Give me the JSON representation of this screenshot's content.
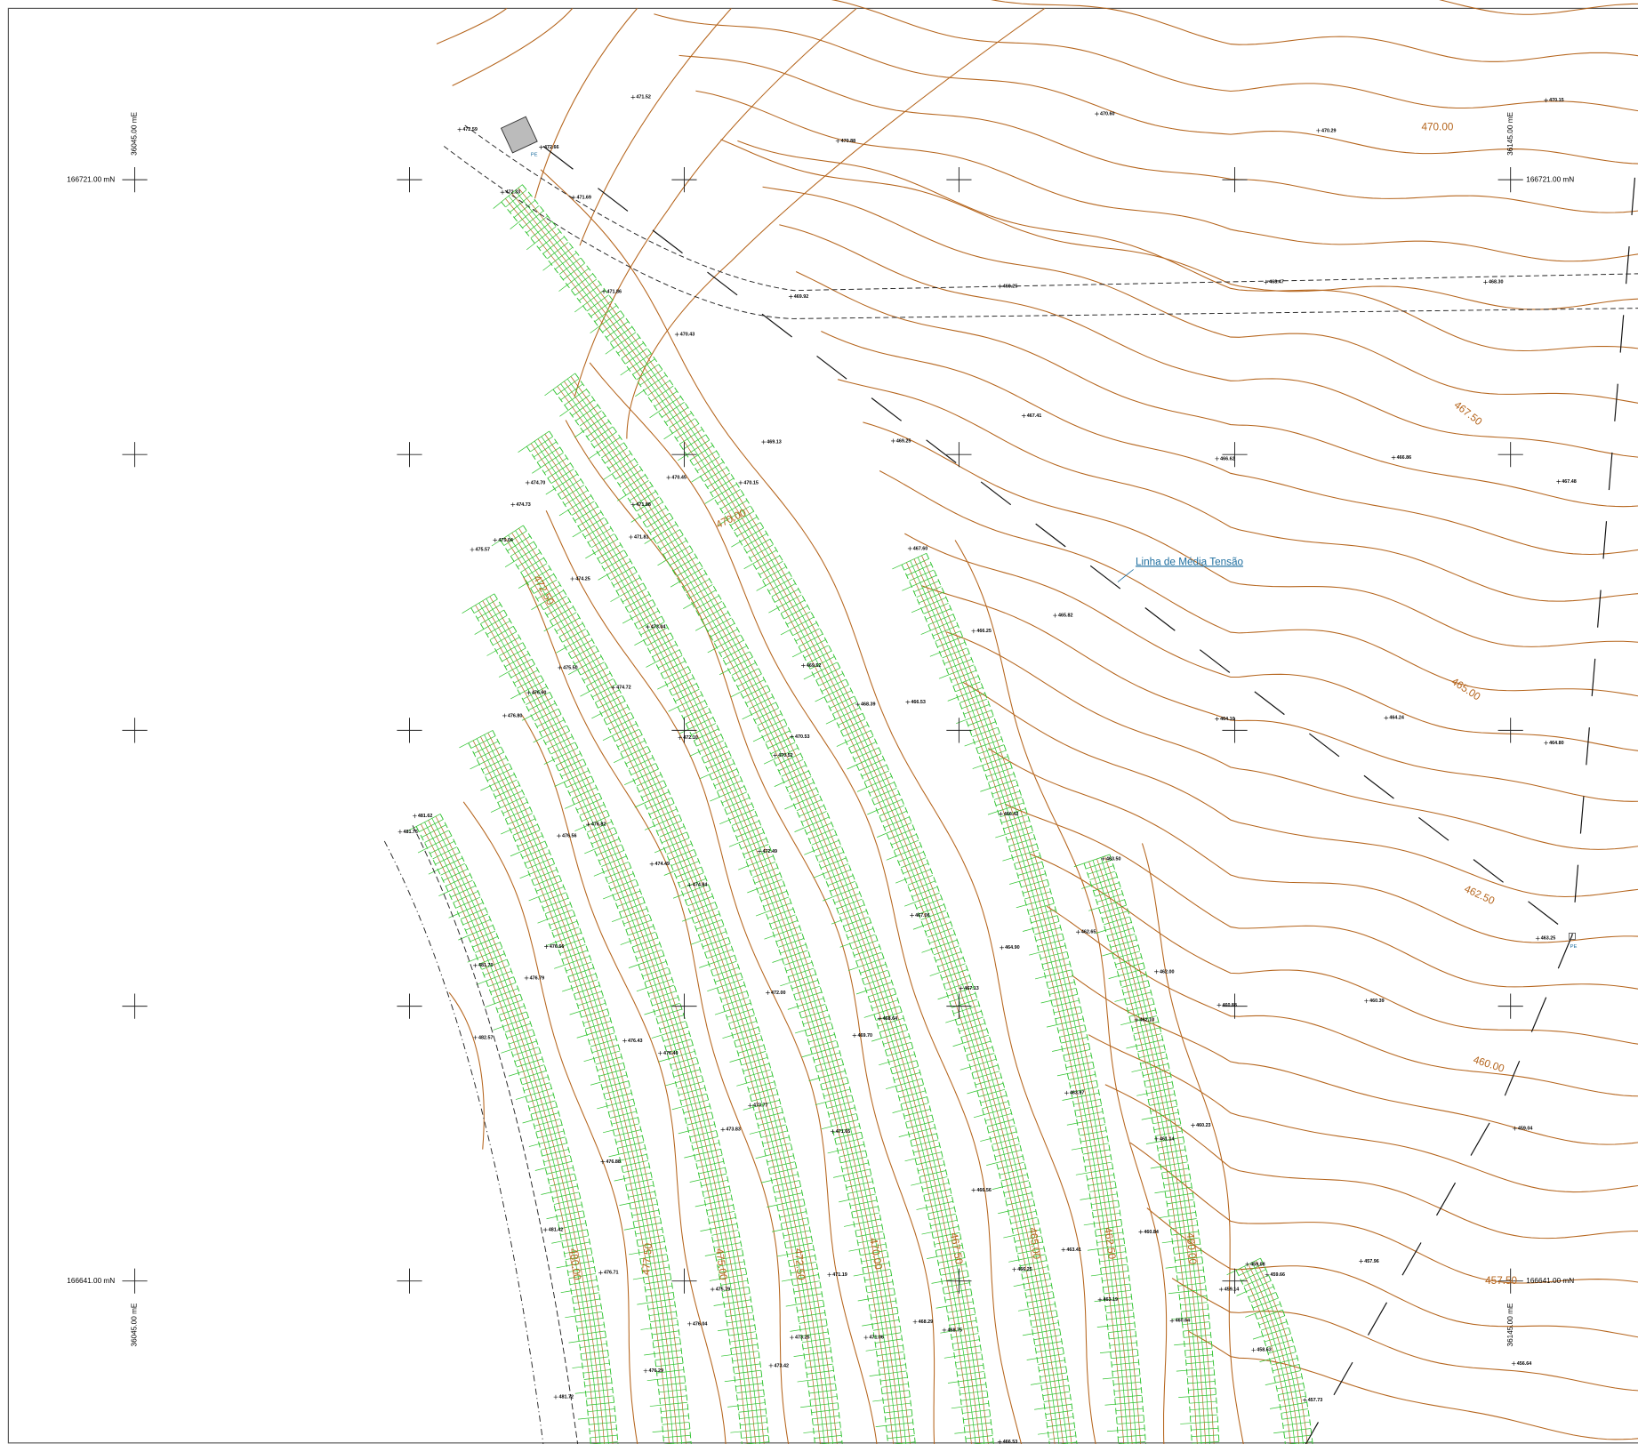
{
  "grid_labels": {
    "northing_top": "166721.00 mN",
    "northing_bottom": "166641.00 mN",
    "easting_left": "36045.00 mE",
    "easting_right": "36145.00 mE"
  },
  "contour_labels": [
    "470.00",
    "467.50",
    "465.00",
    "462.50",
    "460.00",
    "457.50",
    "470.00",
    "472.50",
    "480.00",
    "477.50",
    "475.00",
    "472.50",
    "470.00",
    "467.50",
    "465.00",
    "462.50",
    "460.00"
  ],
  "spot_heights": [
    "471.52",
    "470.60",
    "470.88",
    "470.29",
    "470.15",
    "472.59",
    "472.66",
    "472.33",
    "471.69",
    "469.92",
    "469.25",
    "468.47",
    "468.30",
    "471.86",
    "470.43",
    "467.41",
    "469.25",
    "469.13",
    "466.62",
    "466.86",
    "467.48",
    "470.45",
    "470.15",
    "474.70",
    "474.73",
    "471.88",
    "471.81",
    "475.04",
    "475.57",
    "467.60",
    "474.25",
    "465.82",
    "473.04",
    "466.25",
    "475.50",
    "469.52",
    "474.72",
    "476.60",
    "468.39",
    "466.53",
    "476.80",
    "464.10",
    "464.24",
    "464.80",
    "472.10",
    "470.53",
    "470.52",
    "481.62",
    "481.76",
    "476.56",
    "476.82",
    "466.42",
    "472.49",
    "474.49",
    "463.50",
    "474.84",
    "467.06",
    "462.65",
    "476.66",
    "464.90",
    "463.25",
    "481.70",
    "476.79",
    "462.00",
    "467.13",
    "472.00",
    "460.39",
    "460.88",
    "462.10",
    "468.64",
    "469.70",
    "482.57",
    "476.43",
    "476.40",
    "463.97",
    "473.77",
    "460.23",
    "459.04",
    "473.83",
    "471.65",
    "461.14",
    "476.88",
    "466.56",
    "481.42",
    "460.84",
    "463.41",
    "457.96",
    "476.71",
    "471.19",
    "466.25",
    "459.08",
    "459.66",
    "459.14",
    "475.79",
    "463.19",
    "460.64",
    "476.04",
    "468.29",
    "468.75",
    "473.25",
    "471.06",
    "476.29",
    "473.42",
    "458.63",
    "456.64",
    "481.72",
    "457.73",
    "466.53"
  ],
  "annotation": "Linha de Média Tensão",
  "pe_label": "PE"
}
